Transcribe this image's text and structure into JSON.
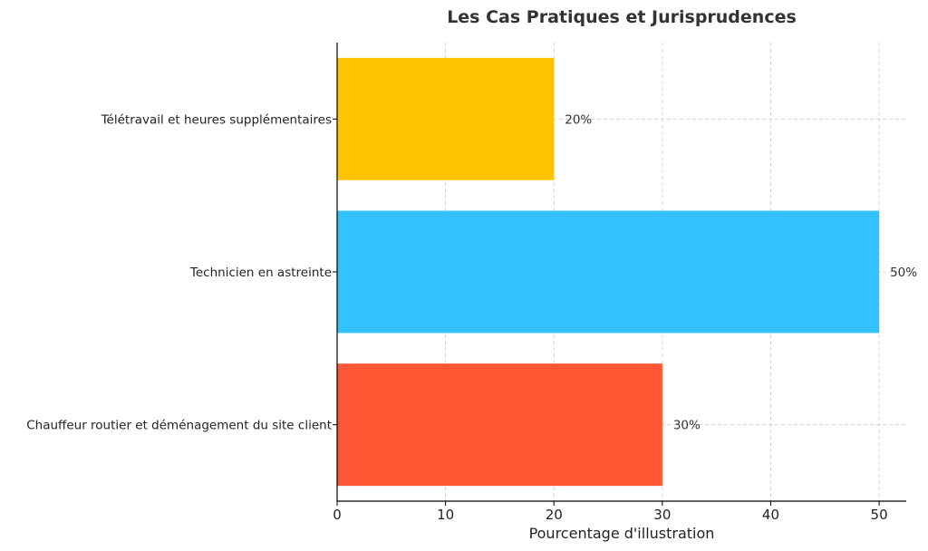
{
  "chart_data": {
    "type": "bar",
    "orientation": "horizontal",
    "title": "Les Cas Pratiques et Jurisprudences",
    "xlabel": "Pourcentage d'illustration",
    "ylabel": "",
    "xlim": [
      0,
      52.5
    ],
    "xticks": [
      0,
      10,
      20,
      30,
      40,
      50
    ],
    "grid": true,
    "categories": [
      "Chauffeur routier et déménagement du site client",
      "Technicien en astreinte",
      "Télétravail et heures supplémentaires"
    ],
    "values": [
      30,
      50,
      20
    ],
    "data_labels": [
      "30%",
      "50%",
      "20%"
    ],
    "colors": [
      "#FF5733",
      "#33C1FF",
      "#FFC300"
    ]
  }
}
